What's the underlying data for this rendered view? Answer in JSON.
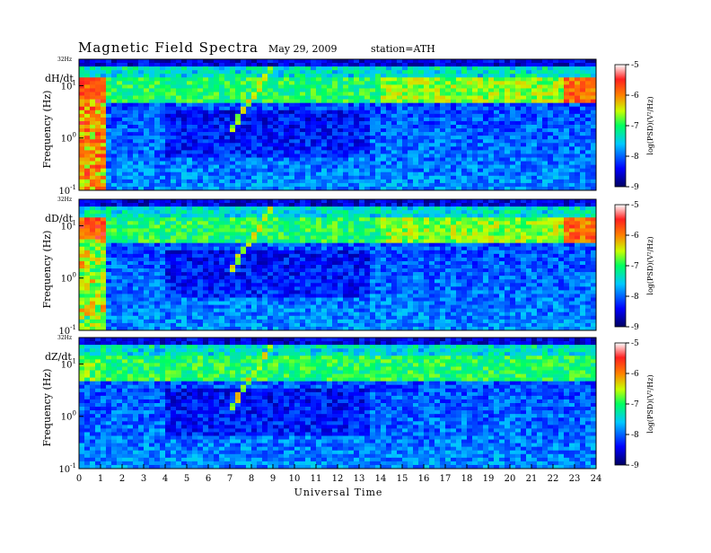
{
  "header": {
    "title": "Magnetic  Field  Spectra",
    "date": "May 29, 2009",
    "station": "station=ATH"
  },
  "x_axis": {
    "label": "Universal Time",
    "ticks": [
      "0",
      "1",
      "2",
      "3",
      "4",
      "5",
      "6",
      "7",
      "8",
      "9",
      "10",
      "11",
      "12",
      "13",
      "14",
      "15",
      "16",
      "17",
      "18",
      "19",
      "20",
      "21",
      "22",
      "23",
      "24"
    ]
  },
  "panels": [
    {
      "label": "dH/dt",
      "ylabel": "Frequency  (Hz)",
      "top_freq": "32Hz",
      "y_ticks": [
        {
          "base": "10",
          "exp": "1"
        },
        {
          "base": "10",
          "exp": "0"
        },
        {
          "base": "10",
          "exp": "-1"
        }
      ],
      "colorbar": {
        "ticks": [
          "-5",
          "-6",
          "-7",
          "-8",
          "-9"
        ],
        "label": "log(PSD)(V²/Hz)"
      }
    },
    {
      "label": "dD/dt",
      "ylabel": "Frequency  (Hz)",
      "top_freq": "32Hz",
      "y_ticks": [
        {
          "base": "10",
          "exp": "1"
        },
        {
          "base": "10",
          "exp": "0"
        },
        {
          "base": "10",
          "exp": "-1"
        }
      ],
      "colorbar": {
        "ticks": [
          "-5",
          "-6",
          "-7",
          "-8",
          "-9"
        ],
        "label": "log(PSD)(V²/Hz)"
      }
    },
    {
      "label": "dZ/dt",
      "ylabel": "Frequency  (Hz)",
      "top_freq": "32Hz",
      "y_ticks": [
        {
          "base": "10",
          "exp": "1"
        },
        {
          "base": "10",
          "exp": "0"
        },
        {
          "base": "10",
          "exp": "-1"
        }
      ],
      "colorbar": {
        "ticks": [
          "-5",
          "-6",
          "-7",
          "-8",
          "-9"
        ],
        "label": "log(PSD)(V²/Hz)"
      }
    }
  ],
  "chart_data": [
    {
      "type": "heatmap",
      "panel": "dH/dt",
      "x_range_hours": [
        0,
        24
      ],
      "y_range_hz": [
        0.1,
        32
      ],
      "y_scale": "log",
      "color_range_log_psd": [
        -9,
        -5
      ],
      "colormap": [
        "#000080",
        "#0000ff",
        "#00ffff",
        "#00ff00",
        "#ffff00",
        "#ff0000",
        "#ffffff"
      ]
    },
    {
      "type": "heatmap",
      "panel": "dD/dt",
      "x_range_hours": [
        0,
        24
      ],
      "y_range_hz": [
        0.1,
        32
      ],
      "y_scale": "log",
      "color_range_log_psd": [
        -9,
        -5
      ],
      "colormap": [
        "#000080",
        "#0000ff",
        "#00ffff",
        "#00ff00",
        "#ffff00",
        "#ff0000",
        "#ffffff"
      ]
    },
    {
      "type": "heatmap",
      "panel": "dZ/dt",
      "x_range_hours": [
        0,
        24
      ],
      "y_range_hz": [
        0.1,
        32
      ],
      "y_scale": "log",
      "color_range_log_psd": [
        -9,
        -5
      ],
      "colormap": [
        "#000080",
        "#0000ff",
        "#00ffff",
        "#00ff00",
        "#ffff00",
        "#ff0000",
        "#ffffff"
      ]
    }
  ]
}
